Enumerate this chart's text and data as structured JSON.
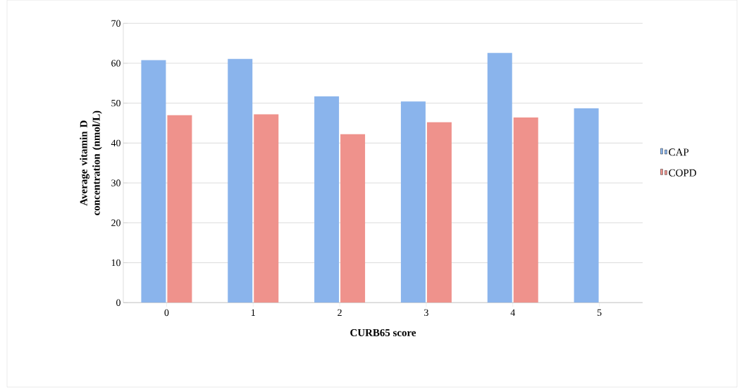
{
  "chart_data": {
    "type": "bar",
    "xlabel": "CURB65 score",
    "ylabel": "Average vitamin D concentration (nmol/L)",
    "categories": [
      "0",
      "1",
      "2",
      "3",
      "4",
      "5"
    ],
    "series": [
      {
        "name": "CAP",
        "color": "#8ab4ec",
        "values": [
          60.8,
          61.1,
          51.7,
          50.4,
          62.6,
          48.7
        ]
      },
      {
        "name": "COPD",
        "color": "#ef928c",
        "values": [
          47.0,
          47.2,
          42.2,
          45.2,
          46.4,
          null
        ]
      }
    ],
    "ylim": [
      0,
      70
    ],
    "yticks": [
      0,
      10,
      20,
      30,
      40,
      50,
      60,
      70
    ],
    "grid": "y",
    "legend": "right"
  }
}
